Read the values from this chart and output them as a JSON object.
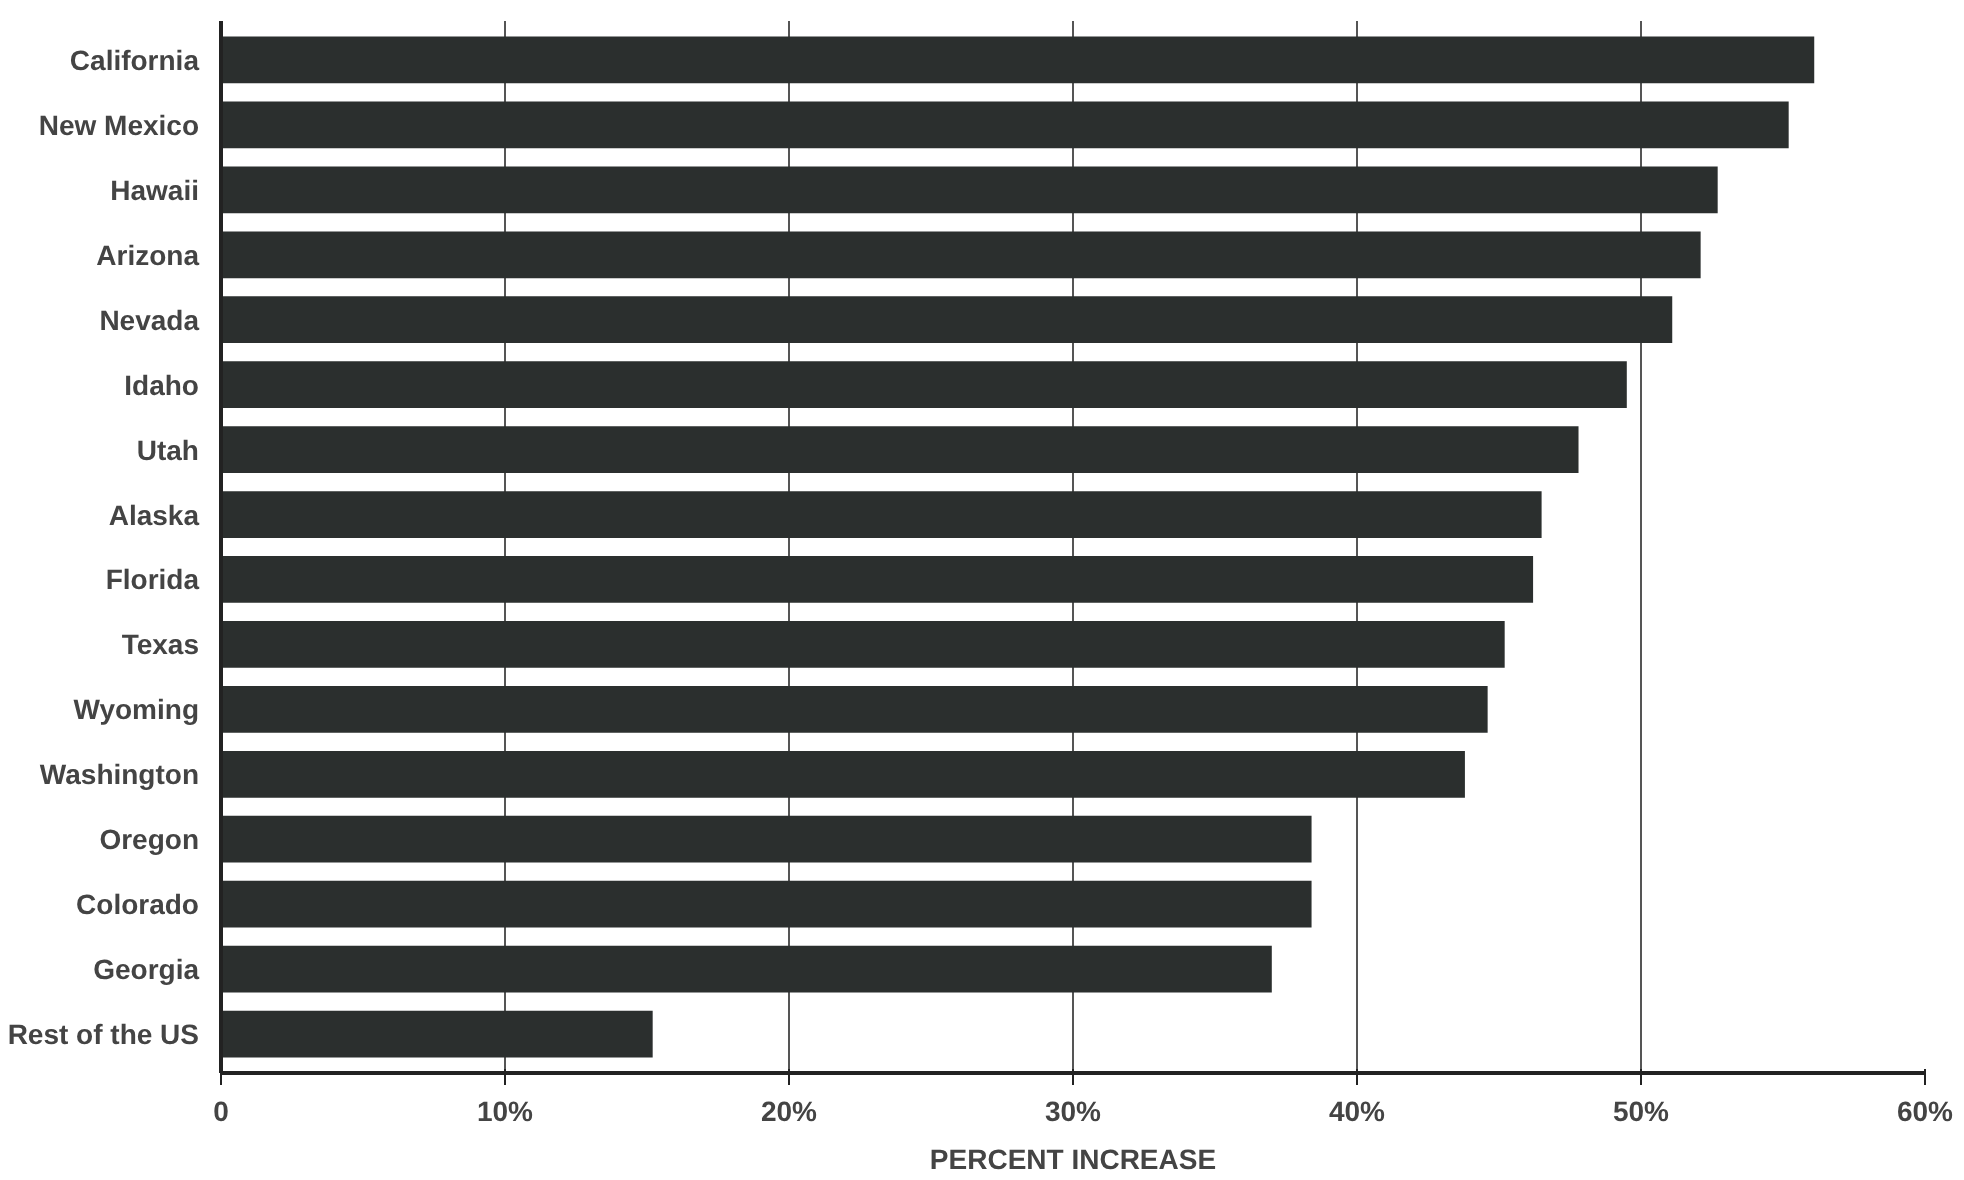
{
  "chart_data": {
    "type": "bar",
    "orientation": "horizontal",
    "xlabel": "PERCENT INCREASE",
    "categories": [
      "California",
      "New Mexico",
      "Hawaii",
      "Arizona",
      "Nevada",
      "Idaho",
      "Utah",
      "Alaska",
      "Florida",
      "Texas",
      "Wyoming",
      "Washington",
      "Oregon",
      "Colorado",
      "Georgia",
      "Rest of the US"
    ],
    "values": [
      56.1,
      55.2,
      52.7,
      52.1,
      51.1,
      49.5,
      47.8,
      46.5,
      46.2,
      45.2,
      44.6,
      43.8,
      38.4,
      38.4,
      37.0,
      15.2
    ],
    "color": "#2b2f2e",
    "xlim": [
      0,
      60
    ],
    "xticks": [
      0,
      {
        "value": 10,
        "label": "10%"
      },
      {
        "value": 20,
        "label": "20%"
      },
      {
        "value": 30,
        "label": "30%"
      },
      {
        "value": 40,
        "label": "40%"
      },
      {
        "value": 50,
        "label": "50%"
      },
      {
        "value": 60,
        "label": "60%"
      }
    ],
    "grid": "x"
  }
}
